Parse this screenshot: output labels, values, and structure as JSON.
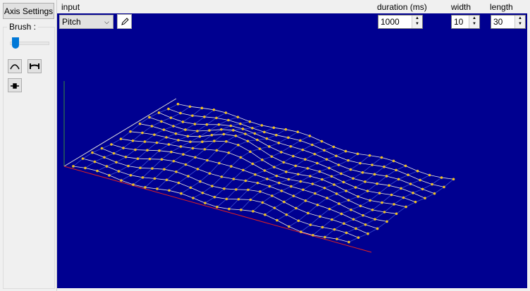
{
  "toolbar": {
    "axis_button": "Axis Settings",
    "brush_label": "Brush :",
    "input_label": "input",
    "input_value": "Pitch",
    "duration_label": "duration (ms)",
    "duration_value": "1000",
    "width_label": "width",
    "width_value": "10",
    "length_label": "length",
    "length_value": "30"
  }
}
